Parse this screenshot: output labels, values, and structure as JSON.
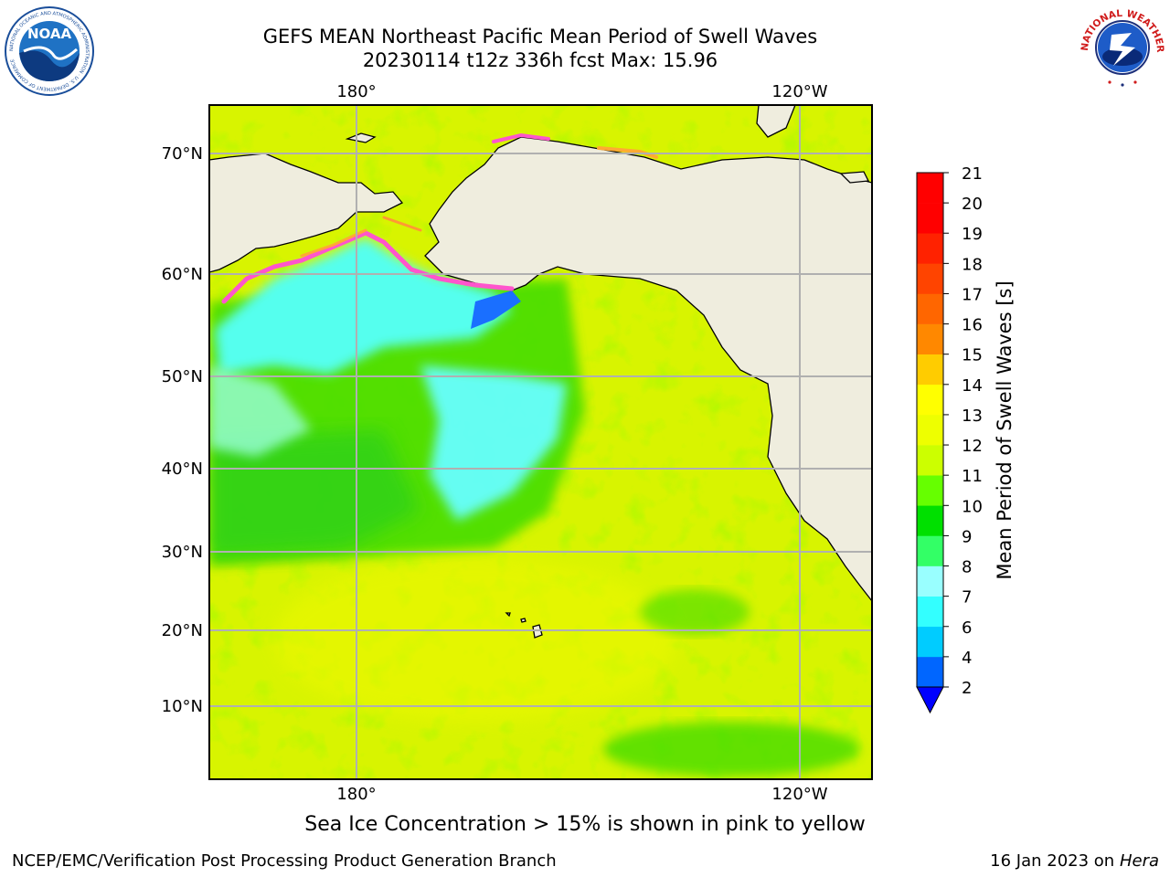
{
  "title": {
    "line1": "GEFS MEAN Northeast Pacific Mean Period of Swell Waves",
    "line2": "20230114 t12z 336h fcst   Max: 15.96"
  },
  "map": {
    "projection": "plate carree",
    "lat_labels": [
      "70°N",
      "60°N",
      "50°N",
      "40°N",
      "30°N",
      "20°N",
      "10°N"
    ],
    "lon_labels_top": [
      "180°",
      "120°W"
    ],
    "lon_labels_bottom": [
      "180°",
      "120°W"
    ],
    "land_color": "#efedde",
    "grid": true
  },
  "colorbar": {
    "label": "Mean Period of Swell Waves [s]",
    "ticks": [
      "2",
      "4",
      "6",
      "7",
      "8",
      "9",
      "10",
      "11",
      "12",
      "13",
      "14",
      "15",
      "16",
      "17",
      "18",
      "19",
      "20",
      "21"
    ],
    "colors": [
      "#0066ff",
      "#00ccff",
      "#33ffff",
      "#99ffff",
      "#33ff66",
      "#00e000",
      "#66ff00",
      "#ccff00",
      "#eeff00",
      "#ffff00",
      "#ffcc00",
      "#ff8800",
      "#ff6600",
      "#ff4400",
      "#ff2200",
      "#ff0000",
      "#ff0000"
    ],
    "extend_color": "#0000ff"
  },
  "caption": "Sea Ice Concentration > 15% is shown in pink to yellow",
  "footer": {
    "left": "NCEP/EMC/Verification Post Processing Product Generation Branch",
    "right_date": "16 Jan 2023 on ",
    "right_host": "Hera"
  },
  "logos": {
    "noaa_text": "NOAA",
    "noaa_ring": "NATIONAL OCEANIC AND ATMOSPHERIC ADMINISTRATION · U.S. DEPARTMENT OF COMMERCE",
    "nws_ring": "NATIONAL WEATHER SERVICE"
  }
}
